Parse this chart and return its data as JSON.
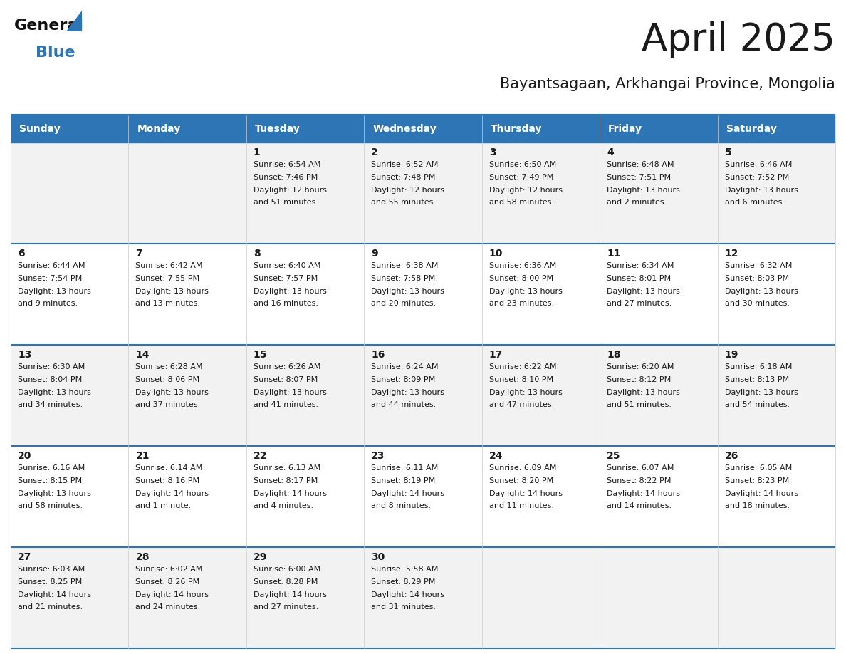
{
  "title": "April 2025",
  "subtitle": "Bayantsagaan, Arkhangai Province, Mongolia",
  "days_of_week": [
    "Sunday",
    "Monday",
    "Tuesday",
    "Wednesday",
    "Thursday",
    "Friday",
    "Saturday"
  ],
  "header_bg": "#2E75B6",
  "header_text": "#FFFFFF",
  "cell_bg_odd": "#F2F2F2",
  "cell_bg_even": "#FFFFFF",
  "border_color": "#2E75B6",
  "text_color": "#1A1A1A",
  "title_color": "#1A1A1A",
  "calendar": [
    [
      {
        "day": "",
        "sunrise": "",
        "sunset": "",
        "daylight": ""
      },
      {
        "day": "",
        "sunrise": "",
        "sunset": "",
        "daylight": ""
      },
      {
        "day": "1",
        "sunrise": "6:54 AM",
        "sunset": "7:46 PM",
        "daylight": "12 hours and 51 minutes."
      },
      {
        "day": "2",
        "sunrise": "6:52 AM",
        "sunset": "7:48 PM",
        "daylight": "12 hours and 55 minutes."
      },
      {
        "day": "3",
        "sunrise": "6:50 AM",
        "sunset": "7:49 PM",
        "daylight": "12 hours and 58 minutes."
      },
      {
        "day": "4",
        "sunrise": "6:48 AM",
        "sunset": "7:51 PM",
        "daylight": "13 hours and 2 minutes."
      },
      {
        "day": "5",
        "sunrise": "6:46 AM",
        "sunset": "7:52 PM",
        "daylight": "13 hours and 6 minutes."
      }
    ],
    [
      {
        "day": "6",
        "sunrise": "6:44 AM",
        "sunset": "7:54 PM",
        "daylight": "13 hours and 9 minutes."
      },
      {
        "day": "7",
        "sunrise": "6:42 AM",
        "sunset": "7:55 PM",
        "daylight": "13 hours and 13 minutes."
      },
      {
        "day": "8",
        "sunrise": "6:40 AM",
        "sunset": "7:57 PM",
        "daylight": "13 hours and 16 minutes."
      },
      {
        "day": "9",
        "sunrise": "6:38 AM",
        "sunset": "7:58 PM",
        "daylight": "13 hours and 20 minutes."
      },
      {
        "day": "10",
        "sunrise": "6:36 AM",
        "sunset": "8:00 PM",
        "daylight": "13 hours and 23 minutes."
      },
      {
        "day": "11",
        "sunrise": "6:34 AM",
        "sunset": "8:01 PM",
        "daylight": "13 hours and 27 minutes."
      },
      {
        "day": "12",
        "sunrise": "6:32 AM",
        "sunset": "8:03 PM",
        "daylight": "13 hours and 30 minutes."
      }
    ],
    [
      {
        "day": "13",
        "sunrise": "6:30 AM",
        "sunset": "8:04 PM",
        "daylight": "13 hours and 34 minutes."
      },
      {
        "day": "14",
        "sunrise": "6:28 AM",
        "sunset": "8:06 PM",
        "daylight": "13 hours and 37 minutes."
      },
      {
        "day": "15",
        "sunrise": "6:26 AM",
        "sunset": "8:07 PM",
        "daylight": "13 hours and 41 minutes."
      },
      {
        "day": "16",
        "sunrise": "6:24 AM",
        "sunset": "8:09 PM",
        "daylight": "13 hours and 44 minutes."
      },
      {
        "day": "17",
        "sunrise": "6:22 AM",
        "sunset": "8:10 PM",
        "daylight": "13 hours and 47 minutes."
      },
      {
        "day": "18",
        "sunrise": "6:20 AM",
        "sunset": "8:12 PM",
        "daylight": "13 hours and 51 minutes."
      },
      {
        "day": "19",
        "sunrise": "6:18 AM",
        "sunset": "8:13 PM",
        "daylight": "13 hours and 54 minutes."
      }
    ],
    [
      {
        "day": "20",
        "sunrise": "6:16 AM",
        "sunset": "8:15 PM",
        "daylight": "13 hours and 58 minutes."
      },
      {
        "day": "21",
        "sunrise": "6:14 AM",
        "sunset": "8:16 PM",
        "daylight": "14 hours and 1 minute."
      },
      {
        "day": "22",
        "sunrise": "6:13 AM",
        "sunset": "8:17 PM",
        "daylight": "14 hours and 4 minutes."
      },
      {
        "day": "23",
        "sunrise": "6:11 AM",
        "sunset": "8:19 PM",
        "daylight": "14 hours and 8 minutes."
      },
      {
        "day": "24",
        "sunrise": "6:09 AM",
        "sunset": "8:20 PM",
        "daylight": "14 hours and 11 minutes."
      },
      {
        "day": "25",
        "sunrise": "6:07 AM",
        "sunset": "8:22 PM",
        "daylight": "14 hours and 14 minutes."
      },
      {
        "day": "26",
        "sunrise": "6:05 AM",
        "sunset": "8:23 PM",
        "daylight": "14 hours and 18 minutes."
      }
    ],
    [
      {
        "day": "27",
        "sunrise": "6:03 AM",
        "sunset": "8:25 PM",
        "daylight": "14 hours and 21 minutes."
      },
      {
        "day": "28",
        "sunrise": "6:02 AM",
        "sunset": "8:26 PM",
        "daylight": "14 hours and 24 minutes."
      },
      {
        "day": "29",
        "sunrise": "6:00 AM",
        "sunset": "8:28 PM",
        "daylight": "14 hours and 27 minutes."
      },
      {
        "day": "30",
        "sunrise": "5:58 AM",
        "sunset": "8:29 PM",
        "daylight": "14 hours and 31 minutes."
      },
      {
        "day": "",
        "sunrise": "",
        "sunset": "",
        "daylight": ""
      },
      {
        "day": "",
        "sunrise": "",
        "sunset": "",
        "daylight": ""
      },
      {
        "day": "",
        "sunrise": "",
        "sunset": "",
        "daylight": ""
      }
    ]
  ],
  "logo_general_color": "#111111",
  "logo_blue_color": "#2E75B6",
  "logo_triangle_color": "#2E75B6",
  "grid_line_color": "#2E75B6",
  "cell_border_color": "#CCCCCC"
}
